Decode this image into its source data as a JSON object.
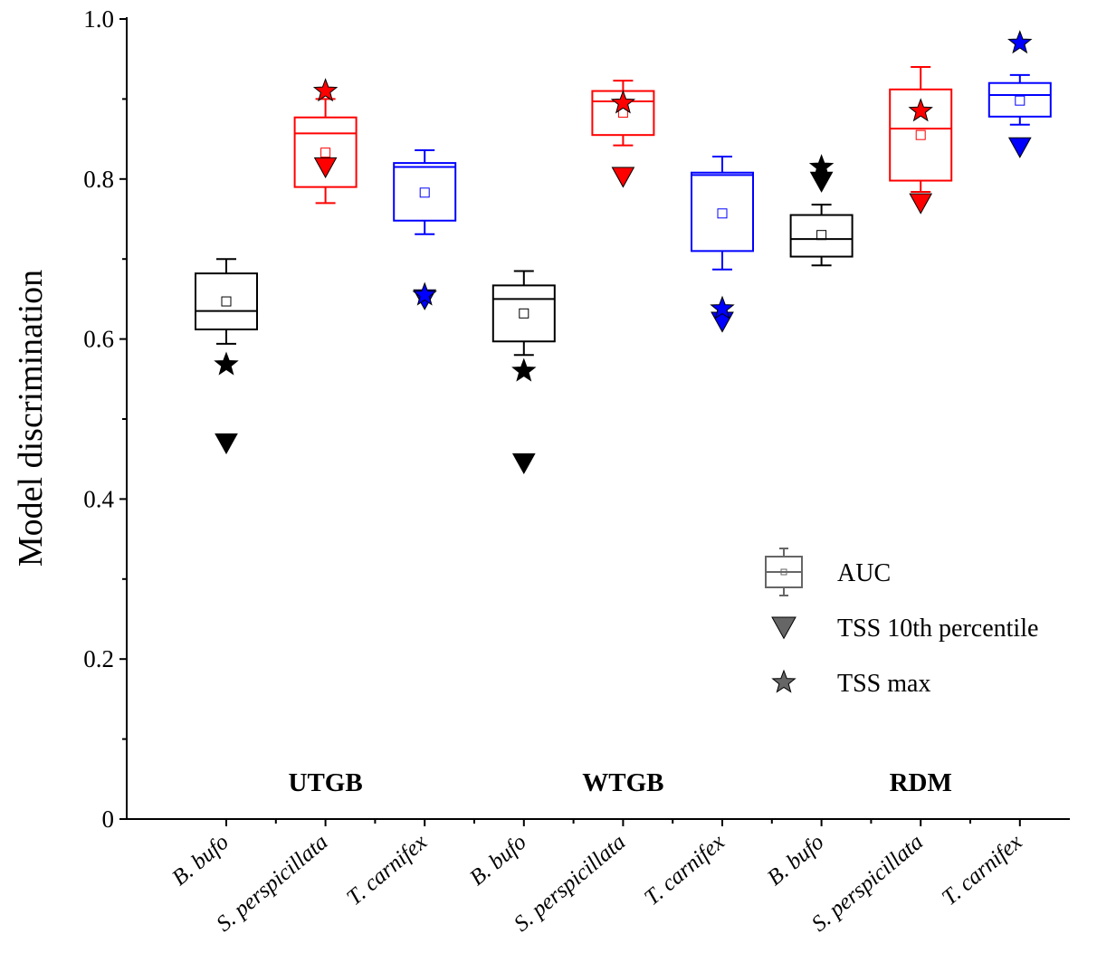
{
  "chart_data": {
    "type": "box",
    "ylabel": "Model discrimination",
    "ylim": [
      0,
      1.0
    ],
    "yticks": [
      {
        "value": 0,
        "label": "0"
      },
      {
        "value": 0.2,
        "label": "0.2"
      },
      {
        "value": 0.4,
        "label": "0.4"
      },
      {
        "value": 0.6,
        "label": "0.6"
      },
      {
        "value": 0.8,
        "label": "0.8"
      },
      {
        "value": 1.0,
        "label": "1.0"
      }
    ],
    "legend": {
      "placement": "lower-right",
      "entries": [
        {
          "marker": "box",
          "label": "AUC"
        },
        {
          "marker": "triangle-down",
          "label": "TSS 10th percentile"
        },
        {
          "marker": "star",
          "label": "TSS max"
        }
      ]
    },
    "groups": [
      {
        "label": "UTGB",
        "category_indices": [
          0,
          1,
          2
        ]
      },
      {
        "label": "WTGB",
        "category_indices": [
          3,
          4,
          5
        ]
      },
      {
        "label": "RDM",
        "category_indices": [
          6,
          7,
          8
        ]
      }
    ],
    "categories": [
      {
        "label": "B. bufo",
        "color": "#000000",
        "auc": {
          "whisker_low": 0.594,
          "q1": 0.612,
          "median": 0.635,
          "q3": 0.682,
          "whisker_high": 0.7,
          "mean": 0.647
        },
        "tss_10th": 0.47,
        "tss_max": 0.568
      },
      {
        "label": "S. perspicillata",
        "color": "#ff0000",
        "auc": {
          "whisker_low": 0.77,
          "q1": 0.79,
          "median": 0.857,
          "q3": 0.877,
          "whisker_high": 0.9,
          "mean": 0.833
        },
        "tss_10th": 0.815,
        "tss_max": 0.91
      },
      {
        "label": "T. carnifex",
        "color": "#0000ff",
        "auc": {
          "whisker_low": 0.731,
          "q1": 0.748,
          "median": 0.815,
          "q3": 0.82,
          "whisker_high": 0.836,
          "mean": 0.783
        },
        "tss_10th": 0.65,
        "tss_max": 0.655
      },
      {
        "label": "B. bufo",
        "color": "#000000",
        "auc": {
          "whisker_low": 0.58,
          "q1": 0.597,
          "median": 0.65,
          "q3": 0.667,
          "whisker_high": 0.685,
          "mean": 0.632
        },
        "tss_10th": 0.445,
        "tss_max": 0.56
      },
      {
        "label": "S. perspicillata",
        "color": "#ff0000",
        "auc": {
          "whisker_low": 0.842,
          "q1": 0.855,
          "median": 0.897,
          "q3": 0.91,
          "whisker_high": 0.923,
          "mean": 0.883
        },
        "tss_10th": 0.803,
        "tss_max": 0.895
      },
      {
        "label": "T. carnifex",
        "color": "#0000ff",
        "auc": {
          "whisker_low": 0.687,
          "q1": 0.71,
          "median": 0.805,
          "q3": 0.808,
          "whisker_high": 0.828,
          "mean": 0.757
        },
        "tss_10th": 0.622,
        "tss_max": 0.638
      },
      {
        "label": "B. bufo",
        "color": "#000000",
        "auc": {
          "whisker_low": 0.692,
          "q1": 0.703,
          "median": 0.725,
          "q3": 0.755,
          "whisker_high": 0.768,
          "mean": 0.73
        },
        "tss_10th": 0.797,
        "tss_max": 0.815
      },
      {
        "label": "S. perspicillata",
        "color": "#ff0000",
        "auc": {
          "whisker_low": 0.784,
          "q1": 0.798,
          "median": 0.863,
          "q3": 0.912,
          "whisker_high": 0.94,
          "mean": 0.855
        },
        "tss_10th": 0.77,
        "tss_max": 0.885
      },
      {
        "label": "T. carnifex",
        "color": "#0000ff",
        "auc": {
          "whisker_low": 0.868,
          "q1": 0.878,
          "median": 0.905,
          "q3": 0.92,
          "whisker_high": 0.93,
          "mean": 0.898
        },
        "tss_10th": 0.84,
        "tss_max": 0.97
      }
    ]
  }
}
